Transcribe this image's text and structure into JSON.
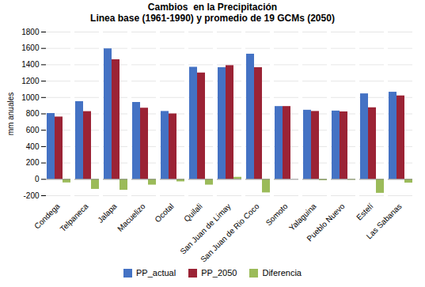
{
  "chart_data": {
    "type": "bar",
    "title": "Cambios  en la Precipitación",
    "subtitle": "Linea base (1961-1990) y promedio de 19 GCMs (2050)",
    "ylabel": "mm anuales",
    "categories": [
      "Condega",
      "Telpaneca",
      "Jalapa",
      "Macuelizo",
      "Ocotal",
      "Quilali",
      "San Juan de Limay",
      "San Juan de Rio Coco",
      "Somoto",
      "Yalaguina",
      "Pueblo Nuevo",
      "Estelí",
      "Las Sabanas"
    ],
    "series": [
      {
        "name": "PP_actual",
        "color": "#4472C4",
        "values": [
          805,
          950,
          1595,
          940,
          830,
          1370,
          1365,
          1530,
          890,
          845,
          835,
          1045,
          1065
        ]
      },
      {
        "name": "PP_2050",
        "color": "#9B2335",
        "values": [
          762,
          828,
          1462,
          870,
          800,
          1300,
          1390,
          1365,
          890,
          830,
          825,
          875,
          1020
        ]
      },
      {
        "name": "Diferencia",
        "color": "#9BBB59",
        "values": [
          -43,
          -122,
          -133,
          -70,
          -30,
          -70,
          25,
          -165,
          0,
          -15,
          -10,
          -170,
          -45
        ]
      }
    ],
    "ylim": [
      -200,
      1800
    ],
    "yticks": [
      -200,
      0,
      200,
      400,
      600,
      800,
      1000,
      1200,
      1400,
      1600,
      1800
    ],
    "grid": true,
    "legend": "bottom"
  }
}
